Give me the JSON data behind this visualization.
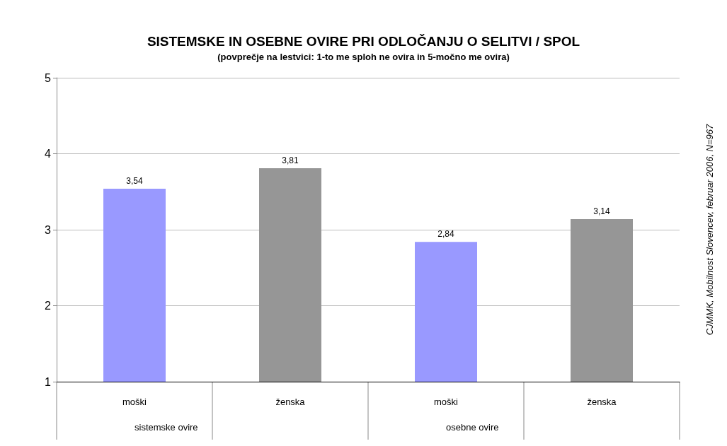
{
  "chart_data": {
    "type": "bar",
    "title": "SISTEMSKE IN OSEBNE OVIRE PRI ODLOČANJU O SELITVI / SPOL",
    "subtitle": "(povprečje na lestvici: 1-to me sploh ne ovira in 5-močno me ovira)",
    "categories": [
      "moški",
      "ženska",
      "moški",
      "ženska"
    ],
    "values": [
      3.54,
      3.81,
      2.84,
      3.14
    ],
    "colors": [
      "#9999ff",
      "#969696",
      "#9999ff",
      "#969696"
    ],
    "value_labels": [
      "3,54",
      "3,81",
      "2,84",
      "3,14"
    ],
    "ylim": [
      1,
      5
    ],
    "yticks": [
      1,
      2,
      3,
      4,
      5
    ],
    "grid": "y",
    "annotations": [
      "sistemske ovire",
      "osebne ovire",
      "CJMMK, Mobilnost Slovencev, februar 2006, N=967"
    ]
  }
}
